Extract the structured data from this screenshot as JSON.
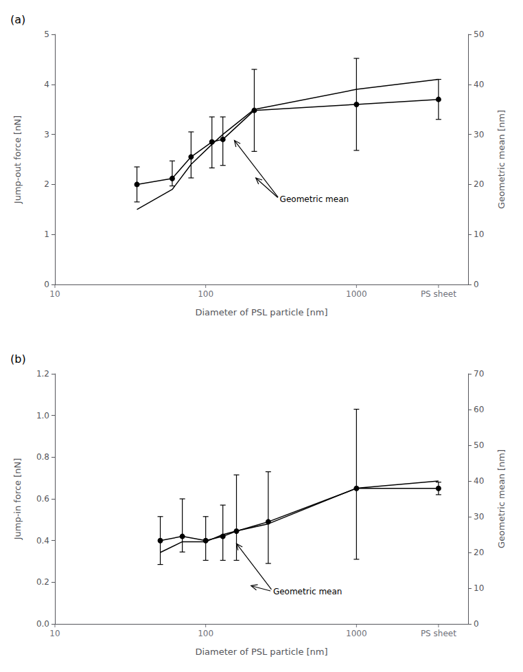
{
  "chart_data": [
    {
      "type": "line",
      "title": "(a)",
      "xlabel": "Diameter of PSL particle [nm]",
      "ylabel": "Jump-out force [nN]",
      "y2label": "Geometric mean [nm]",
      "log": "x",
      "grid": false,
      "x": [
        35,
        60,
        80,
        110,
        130,
        210,
        1000,
        3500
      ],
      "xlim": [
        10,
        5500
      ],
      "xticks": [
        10,
        100,
        1000,
        {
          "value": 3500,
          "label": "PS sheet"
        }
      ],
      "ylim": [
        0,
        5.0
      ],
      "yticks": [
        0,
        1,
        2,
        3,
        4,
        5
      ],
      "y2lim": [
        0,
        50
      ],
      "y2ticks": [
        0,
        10,
        20,
        30,
        40,
        50
      ],
      "series": [
        {
          "type": "line",
          "color": "black",
          "marker": "circle",
          "line_style": "solid",
          "values": [
            2.0,
            2.12,
            2.55,
            2.85,
            2.9,
            3.48,
            3.6,
            3.7
          ],
          "err_lo": [
            0.35,
            0.15,
            0.42,
            0.52,
            0.52,
            0.82,
            0.92,
            0.4
          ],
          "err_hi": [
            0.35,
            0.35,
            0.5,
            0.5,
            0.45,
            0.82,
            0.92,
            0.4
          ]
        },
        {
          "type": "line",
          "color": "black",
          "marker": "none",
          "line_style": "solid",
          "axis": "y2",
          "values": [
            15,
            19,
            24,
            28,
            30,
            35,
            39,
            41
          ]
        }
      ],
      "annotations": [
        {
          "text": "Geometric mean",
          "x": 310,
          "y": 1.7,
          "arrows": [
            {
              "x": 155,
              "y": 2.88
            },
            {
              "x": 215,
              "y": 2.13
            }
          ]
        }
      ]
    },
    {
      "type": "line",
      "title": "(b)",
      "xlabel": "Diameter of PSL particle [nm]",
      "ylabel": "Jump-in force [nN]",
      "y2label": "Geometric mean [nm]",
      "log": "x",
      "grid": false,
      "x": [
        50,
        70,
        100,
        130,
        160,
        260,
        1000,
        3500
      ],
      "xlim": [
        10,
        5500
      ],
      "xticks": [
        10,
        100,
        1000,
        {
          "value": 3500,
          "label": "PS sheet"
        }
      ],
      "ylim": [
        0,
        1.2
      ],
      "yticks": [
        {
          "value": 0,
          "label": "0.0"
        },
        0.2,
        0.4,
        0.6,
        0.8,
        {
          "value": 1.0,
          "label": "1.0"
        },
        1.2
      ],
      "y2lim": [
        0,
        70
      ],
      "y2ticks": [
        0,
        10,
        20,
        30,
        40,
        50,
        60,
        70
      ],
      "series": [
        {
          "type": "line",
          "color": "black",
          "marker": "circle",
          "line_style": "solid",
          "values": [
            0.4,
            0.42,
            0.4,
            0.42,
            0.445,
            0.49,
            0.65,
            0.65
          ],
          "err_lo": [
            0.115,
            0.075,
            0.095,
            0.115,
            0.14,
            0.2,
            0.34,
            0.03
          ],
          "err_hi": [
            0.115,
            0.18,
            0.115,
            0.15,
            0.27,
            0.24,
            0.38,
            0.03
          ]
        },
        {
          "type": "line",
          "color": "black",
          "marker": "none",
          "line_style": "solid",
          "axis": "y2",
          "values": [
            20,
            23,
            23,
            25,
            26,
            28,
            38,
            40
          ]
        }
      ],
      "annotations": [
        {
          "text": "Geometric mean",
          "x": 280,
          "y": 0.155,
          "arrows": [
            {
              "x": 160,
              "y": 0.385
            },
            {
              "x": 200,
              "y": 0.183
            }
          ]
        }
      ]
    }
  ]
}
